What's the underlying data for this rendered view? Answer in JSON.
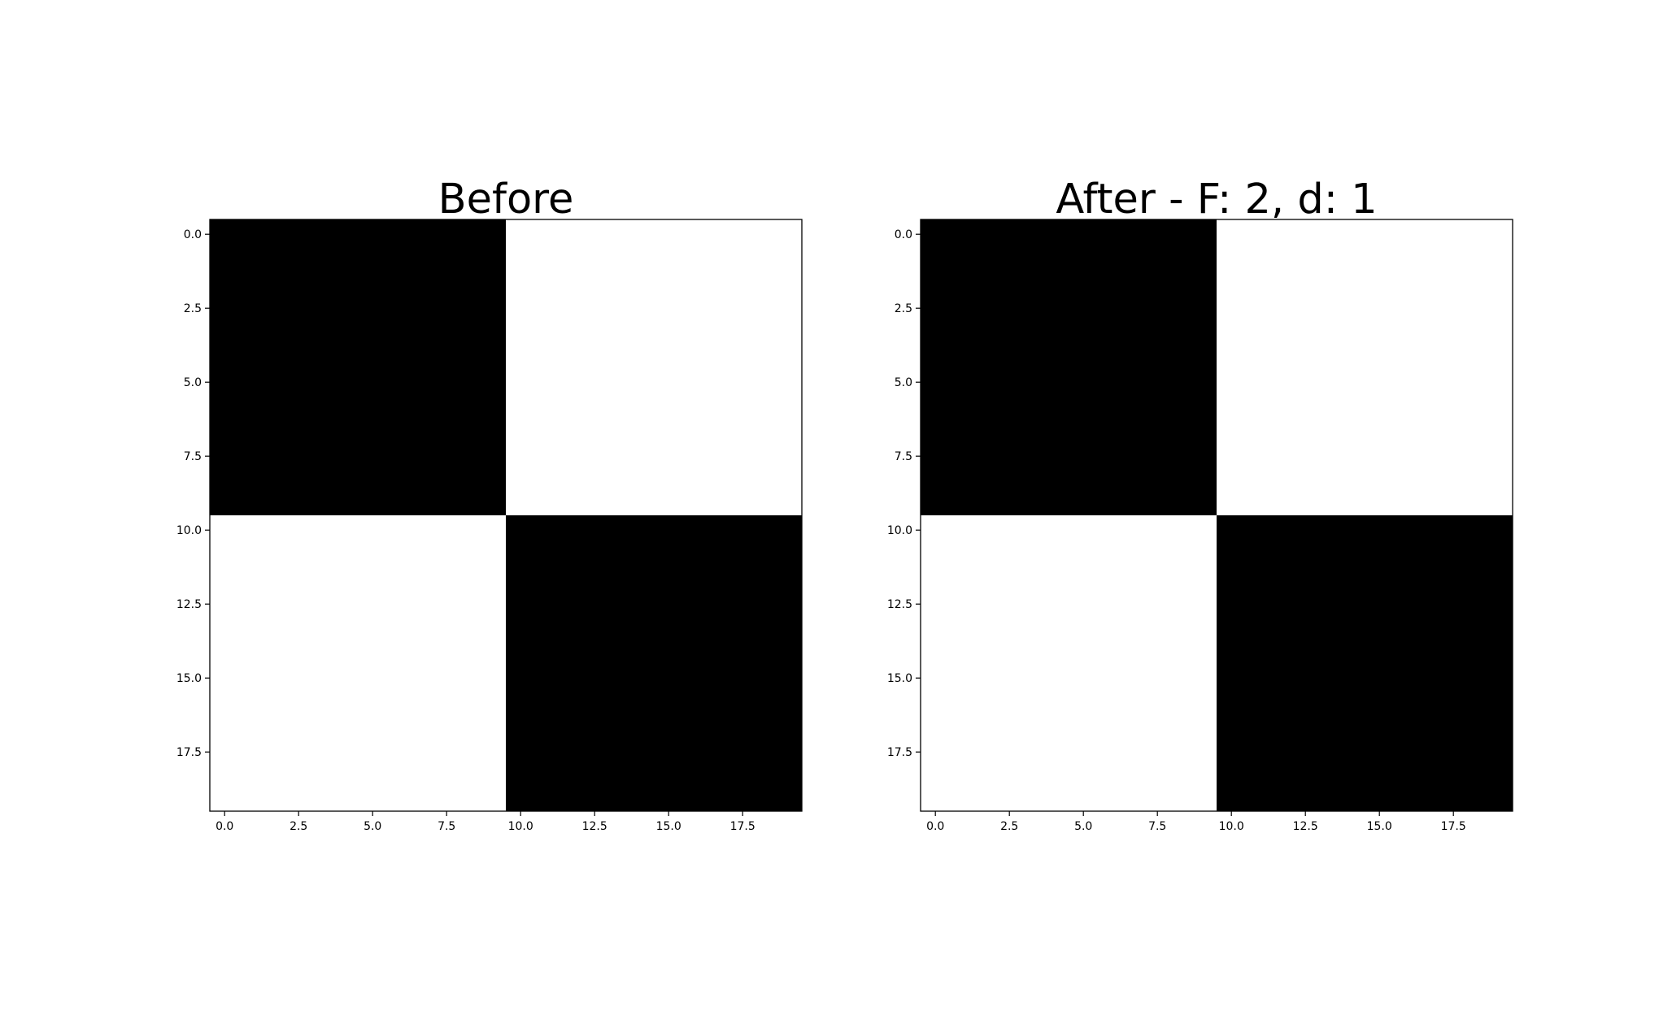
{
  "chart_data": [
    {
      "type": "heatmap",
      "title": "Before",
      "colormap": "gray",
      "colors": {
        "low": "#000000",
        "high": "#ffffff"
      },
      "grid": false,
      "xlim": [
        -0.5,
        19.5
      ],
      "ylim": [
        19.5,
        -0.5
      ],
      "xticks": [
        "0.0",
        "2.5",
        "5.0",
        "7.5",
        "10.0",
        "12.5",
        "15.0",
        "17.5"
      ],
      "yticks": [
        "0.0",
        "2.5",
        "5.0",
        "7.5",
        "10.0",
        "12.5",
        "15.0",
        "17.5"
      ],
      "xtick_values": [
        0,
        2.5,
        5,
        7.5,
        10,
        12.5,
        15,
        17.5
      ],
      "ytick_values": [
        0,
        2.5,
        5,
        7.5,
        10,
        12.5,
        15,
        17.5
      ],
      "regions": [
        {
          "x": [
            0,
            9
          ],
          "y": [
            0,
            9
          ],
          "value": 0
        },
        {
          "x": [
            10,
            19
          ],
          "y": [
            0,
            9
          ],
          "value": 1
        },
        {
          "x": [
            0,
            9
          ],
          "y": [
            10,
            19
          ],
          "value": 1
        },
        {
          "x": [
            10,
            19
          ],
          "y": [
            10,
            19
          ],
          "value": 0
        }
      ]
    },
    {
      "type": "heatmap",
      "title": "After - F: 2, d: 1",
      "colormap": "gray",
      "colors": {
        "low": "#000000",
        "high": "#ffffff"
      },
      "grid": false,
      "xlim": [
        -0.5,
        19.5
      ],
      "ylim": [
        19.5,
        -0.5
      ],
      "xticks": [
        "0.0",
        "2.5",
        "5.0",
        "7.5",
        "10.0",
        "12.5",
        "15.0",
        "17.5"
      ],
      "yticks": [
        "0.0",
        "2.5",
        "5.0",
        "7.5",
        "10.0",
        "12.5",
        "15.0",
        "17.5"
      ],
      "xtick_values": [
        0,
        2.5,
        5,
        7.5,
        10,
        12.5,
        15,
        17.5
      ],
      "ytick_values": [
        0,
        2.5,
        5,
        7.5,
        10,
        12.5,
        15,
        17.5
      ],
      "regions": [
        {
          "x": [
            0,
            9
          ],
          "y": [
            0,
            9
          ],
          "value": 0
        },
        {
          "x": [
            10,
            19
          ],
          "y": [
            0,
            9
          ],
          "value": 1
        },
        {
          "x": [
            0,
            9
          ],
          "y": [
            10,
            19
          ],
          "value": 1
        },
        {
          "x": [
            10,
            19
          ],
          "y": [
            10,
            19
          ],
          "value": 0
        }
      ]
    }
  ]
}
